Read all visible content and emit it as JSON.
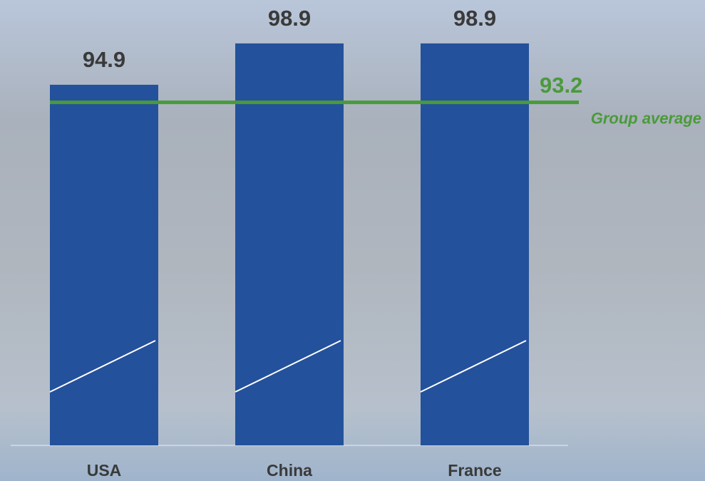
{
  "chart_data": {
    "type": "bar",
    "categories": [
      "USA",
      "China",
      "France"
    ],
    "values": [
      94.9,
      98.9,
      98.9
    ],
    "color": "#24519b",
    "ylim": [
      60,
      100
    ],
    "reference": {
      "value": 93.2,
      "label": "Group average",
      "color": "#4a9a3a"
    }
  }
}
